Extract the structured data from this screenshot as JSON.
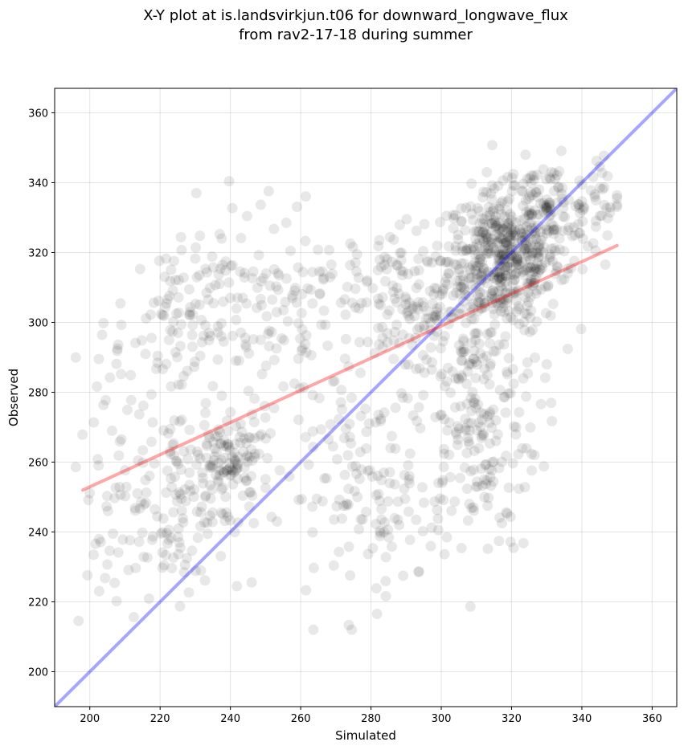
{
  "chart_data": {
    "type": "scatter",
    "title": "X-Y plot at is.landsvirkjun.t06 for downward_longwave_flux\nfrom rav2-17-18 during summer",
    "xlabel": "Simulated",
    "ylabel": "Observed",
    "xlim": [
      190,
      367
    ],
    "ylim": [
      190,
      367
    ],
    "xticks": [
      200,
      220,
      240,
      260,
      280,
      300,
      320,
      340,
      360
    ],
    "yticks": [
      200,
      220,
      240,
      260,
      280,
      300,
      320,
      340,
      360
    ],
    "grid": true,
    "marker_color": "#000000",
    "marker_alpha": 0.09,
    "lines": [
      {
        "role": "one-to-one",
        "color": "#0000ff",
        "x": [
          190,
          367
        ],
        "y": [
          190,
          367
        ]
      },
      {
        "role": "regression",
        "color": "#ff0000",
        "x": [
          198,
          350
        ],
        "y": [
          252,
          322
        ]
      }
    ],
    "clusters": [
      {
        "cx": 318,
        "cy": 318,
        "sx": 8,
        "sy": 10,
        "n": 480
      },
      {
        "cx": 330,
        "cy": 330,
        "sx": 7,
        "sy": 8,
        "n": 120
      },
      {
        "cx": 310,
        "cy": 270,
        "sx": 9,
        "sy": 18,
        "n": 200
      },
      {
        "cx": 295,
        "cy": 305,
        "sx": 10,
        "sy": 12,
        "n": 150
      },
      {
        "cx": 280,
        "cy": 250,
        "sx": 12,
        "sy": 14,
        "n": 130
      },
      {
        "cx": 265,
        "cy": 300,
        "sx": 15,
        "sy": 15,
        "n": 130
      },
      {
        "cx": 240,
        "cy": 260,
        "sx": 6,
        "sy": 7,
        "n": 110
      },
      {
        "cx": 225,
        "cy": 250,
        "sx": 9,
        "sy": 14,
        "n": 140
      },
      {
        "cx": 225,
        "cy": 300,
        "sx": 9,
        "sy": 12,
        "n": 110
      },
      {
        "cx": 205,
        "cy": 250,
        "sx": 5,
        "sy": 25,
        "n": 40
      },
      {
        "cx": 245,
        "cy": 315,
        "sx": 6,
        "sy": 12,
        "n": 35
      },
      {
        "cx": 345,
        "cy": 335,
        "sx": 3,
        "sy": 6,
        "n": 30
      }
    ]
  }
}
